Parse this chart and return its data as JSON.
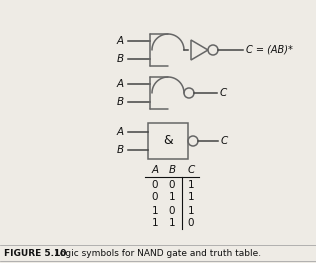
{
  "title": "FIGURE 5.10",
  "caption": "Logic symbols for NAND gate and truth table.",
  "background_color": "#eeebe5",
  "gate_color": "#666666",
  "line_color": "#444444",
  "text_color": "#111111",
  "truth_table": {
    "headers": [
      "A",
      "B",
      "C"
    ],
    "rows": [
      [
        0,
        0,
        1
      ],
      [
        0,
        1,
        1
      ],
      [
        1,
        0,
        1
      ],
      [
        1,
        1,
        0
      ]
    ]
  }
}
